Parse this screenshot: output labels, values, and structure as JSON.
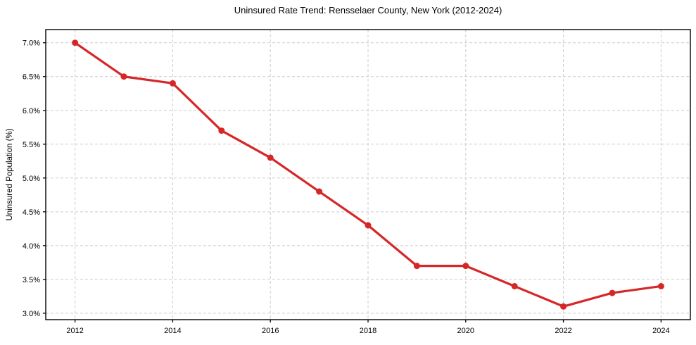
{
  "chart_data": {
    "type": "line",
    "title": "Uninsured Rate Trend: Rensselaer County, New York (2012-2024)",
    "xlabel": "",
    "ylabel": "Uninsured Population (%)",
    "x": [
      2012,
      2013,
      2014,
      2015,
      2016,
      2017,
      2018,
      2019,
      2020,
      2021,
      2022,
      2023,
      2024
    ],
    "series": [
      {
        "name": "Uninsured Rate",
        "values": [
          7.0,
          6.5,
          6.4,
          5.7,
          5.3,
          4.8,
          4.3,
          3.7,
          3.7,
          3.4,
          3.1,
          3.3,
          3.4
        ]
      }
    ],
    "xlim": [
      2011.4,
      2024.6
    ],
    "ylim": [
      2.905,
      7.195
    ],
    "x_tick_values": [
      2012,
      2014,
      2016,
      2018,
      2020,
      2022,
      2024
    ],
    "x_tick_labels": [
      "2012",
      "2014",
      "2016",
      "2018",
      "2020",
      "2022",
      "2024"
    ],
    "y_tick_values": [
      3.0,
      3.5,
      4.0,
      4.5,
      5.0,
      5.5,
      6.0,
      6.5,
      7.0
    ],
    "y_tick_labels": [
      "3.0%",
      "3.5%",
      "4.0%",
      "4.5%",
      "5.0%",
      "5.5%",
      "6.0%",
      "6.5%",
      "7.0%"
    ],
    "grid": true,
    "legend": "none",
    "colors": {
      "line": "#d62728",
      "marker": "#d62728",
      "grid": "#cccccc",
      "axis": "#000000",
      "text": "#000000",
      "background": "#ffffff"
    },
    "style": {
      "line_width": 3.2,
      "marker_radius": 4.5,
      "grid_dash": "4 3",
      "tick_length": 4
    }
  }
}
